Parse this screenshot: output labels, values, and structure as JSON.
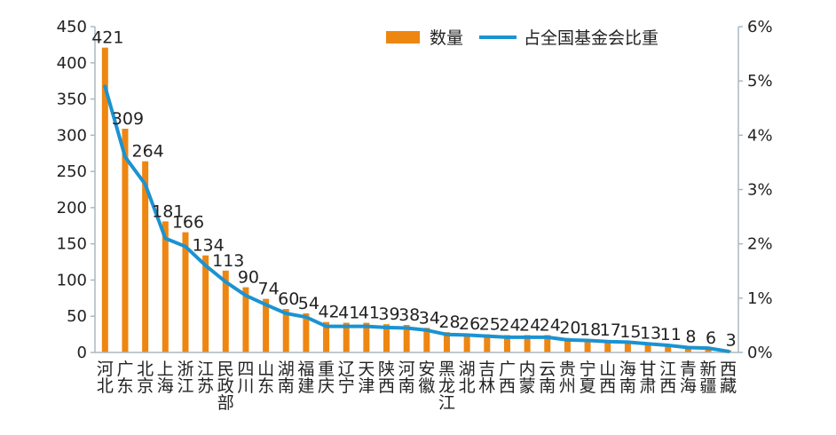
{
  "chart_data": {
    "type": "bar",
    "categories": [
      "河北",
      "广东",
      "北京",
      "上海",
      "浙江",
      "江苏",
      "民政部",
      "四川",
      "山东",
      "湖南",
      "福建",
      "重庆",
      "辽宁",
      "天津",
      "陕西",
      "河南",
      "安徽",
      "黑龙江",
      "湖北",
      "吉林",
      "广西",
      "内蒙",
      "云南",
      "贵州",
      "宁夏",
      "山西",
      "海南",
      "甘肃",
      "江西",
      "青海",
      "新疆",
      "西藏"
    ],
    "series": [
      {
        "name": "数量",
        "type": "bar",
        "axis": "left",
        "values": [
          421,
          309,
          264,
          181,
          166,
          134,
          113,
          90,
          74,
          60,
          54,
          42,
          41,
          41,
          39,
          38,
          34,
          28,
          26,
          25,
          24,
          24,
          24,
          20,
          18,
          17,
          15,
          13,
          11,
          8,
          6,
          3
        ]
      },
      {
        "name": "占全国基金会比重",
        "type": "line",
        "axis": "right",
        "values": [
          4.9,
          3.6,
          3.1,
          2.1,
          1.95,
          1.6,
          1.3,
          1.05,
          0.88,
          0.72,
          0.65,
          0.48,
          0.48,
          0.48,
          0.46,
          0.45,
          0.41,
          0.33,
          0.32,
          0.3,
          0.28,
          0.28,
          0.28,
          0.23,
          0.22,
          0.2,
          0.19,
          0.16,
          0.13,
          0.09,
          0.08,
          0.02
        ]
      }
    ],
    "data_labels": [
      "421",
      "309",
      "264",
      "181",
      "166",
      "134",
      "113",
      "90",
      "74",
      "60",
      "54",
      "42",
      "41",
      "41",
      "39",
      "38",
      "34",
      "28",
      "26",
      "25",
      "24",
      "24",
      "24",
      "20",
      "18",
      "17",
      "15",
      "13",
      "11",
      "8",
      "6",
      "3"
    ],
    "ylim": [
      0,
      450
    ],
    "y_ticks": [
      "0",
      "50",
      "100",
      "150",
      "200",
      "250",
      "300",
      "350",
      "400",
      "450"
    ],
    "y2lim": [
      0,
      6
    ],
    "y2_ticks": [
      "0%",
      "1%",
      "2%",
      "3%",
      "4%",
      "5%",
      "6%"
    ],
    "legend_position": "top-right",
    "grid": false,
    "colors": {
      "bar": "#ee8612",
      "line": "#1b93d1",
      "axis": "#aab8c2",
      "text": "#222222"
    }
  }
}
